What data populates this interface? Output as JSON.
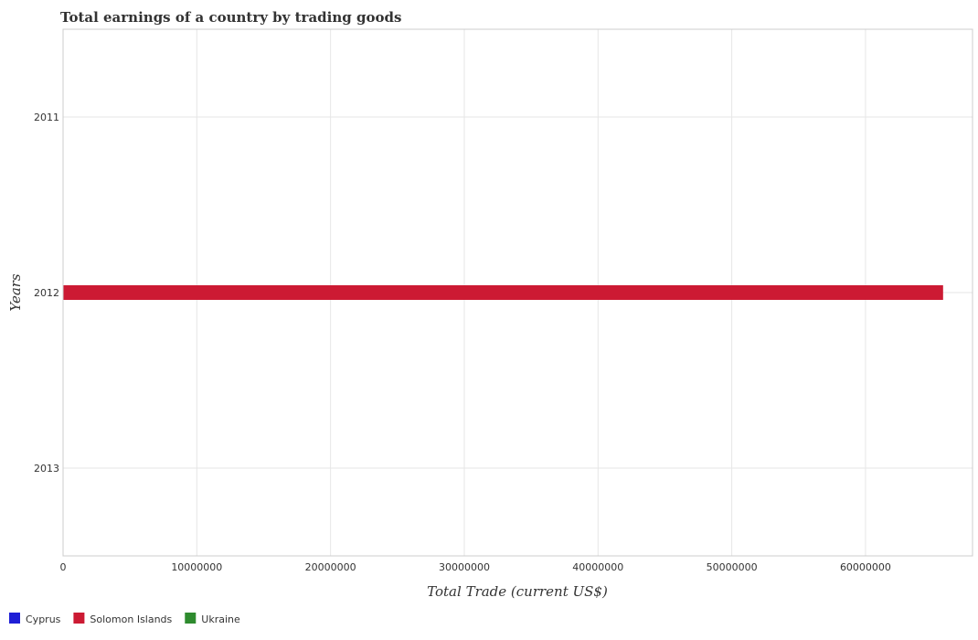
{
  "chart_data": {
    "type": "bar",
    "orientation": "horizontal",
    "title": "Total earnings of a country by trading goods",
    "xlabel": "Total Trade (current US$)",
    "ylabel": "Years",
    "categories": [
      "2011",
      "2012",
      "2013"
    ],
    "series": [
      {
        "name": "Cyprus",
        "color": "#1f1fd6",
        "values": [
          0,
          0,
          0
        ]
      },
      {
        "name": "Solomon Islands",
        "color": "#cc1a33",
        "values": [
          0,
          65800000,
          0
        ]
      },
      {
        "name": "Ukraine",
        "color": "#2e8b2e",
        "values": [
          0,
          0,
          0
        ]
      }
    ],
    "xlim": [
      0,
      68000000
    ],
    "xticks": [
      0,
      10000000,
      20000000,
      30000000,
      40000000,
      50000000,
      60000000
    ],
    "xtick_labels": [
      "0",
      "10000000",
      "20000000",
      "30000000",
      "40000000",
      "50000000",
      "60000000"
    ],
    "grid": true,
    "legend_position": "bottom-left"
  }
}
